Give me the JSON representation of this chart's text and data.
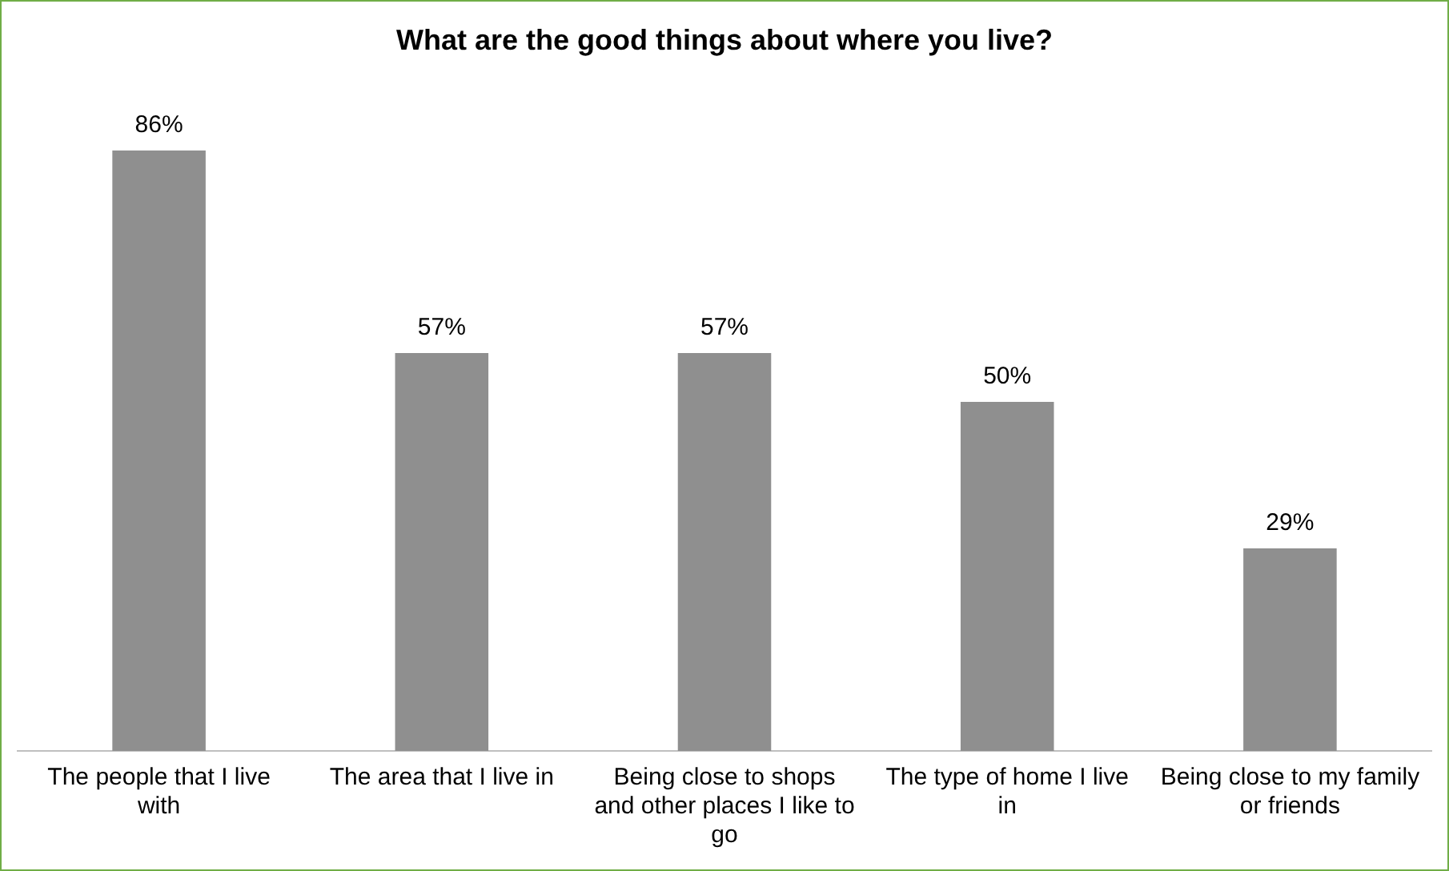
{
  "chart_data": {
    "type": "bar",
    "title": "What are the good things about where you live?",
    "categories": [
      "The people that I live with",
      "The area that I live in",
      "Being close to shops and other places I like to go",
      "The type of home I live in",
      "Being close to my family or friends"
    ],
    "values": [
      86,
      57,
      57,
      50,
      29
    ],
    "value_labels": [
      "86%",
      "57%",
      "57%",
      "50%",
      "29%"
    ],
    "color": "#8f8f8f",
    "grid": false,
    "legend": false
  }
}
